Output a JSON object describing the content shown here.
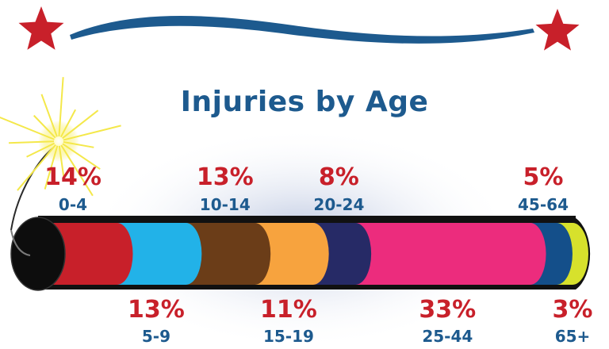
{
  "chart_data": {
    "type": "bar",
    "title": "Injuries by Age",
    "categories": [
      "0-4",
      "5-9",
      "10-14",
      "15-19",
      "20-24",
      "25-44",
      "45-64",
      "65+"
    ],
    "values": [
      14,
      13,
      13,
      11,
      8,
      33,
      5,
      3
    ],
    "value_labels": [
      "14%",
      "13%",
      "13%",
      "11%",
      "8%",
      "33%",
      "5%",
      "3%"
    ],
    "label_positions": [
      "above",
      "below",
      "above",
      "below",
      "above",
      "below",
      "above",
      "below"
    ],
    "colors": [
      "#c8202a",
      "#22b2e8",
      "#6b3d18",
      "#f7a33e",
      "#262a66",
      "#ec2c7d",
      "#144f8a",
      "#d7e12c"
    ],
    "unit": "%",
    "orientation": "stacked-horizontal"
  },
  "theme": {
    "title_color": "#1d5a8e",
    "percent_color": "#c8202a",
    "star_color": "#c8202a",
    "ribbon_color": "#1d5a8e",
    "spark_color": "#f4e84a"
  }
}
